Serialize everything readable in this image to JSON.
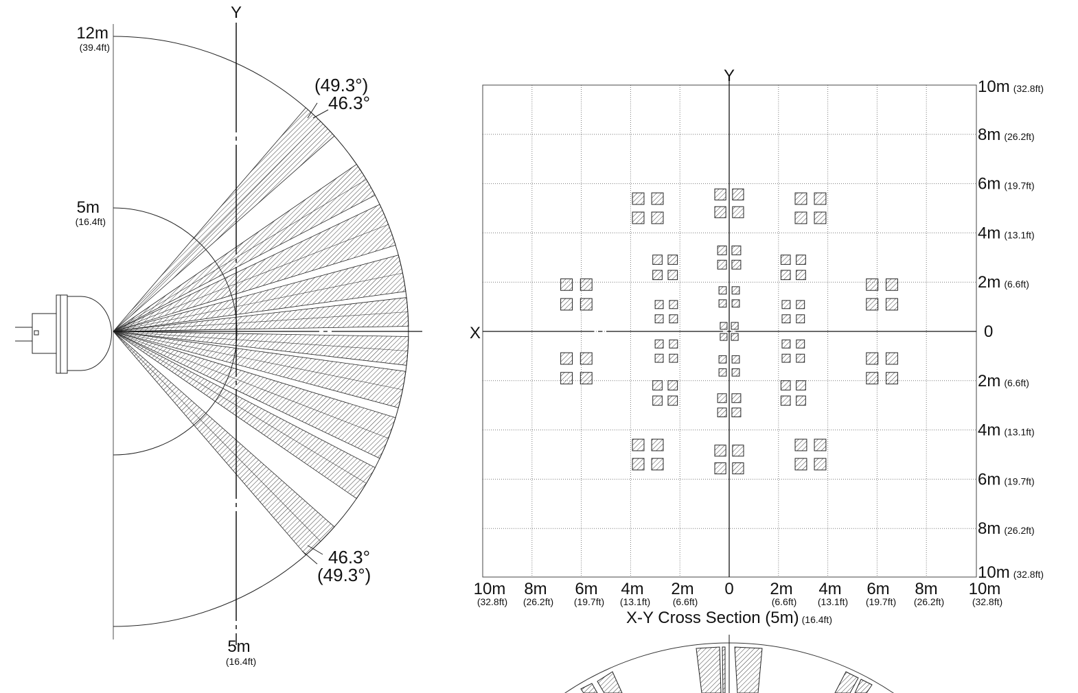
{
  "side_view": {
    "axis_label": "Y",
    "range_far": {
      "label": "12m",
      "sub": "(39.4ft)",
      "meters": 12
    },
    "range_near": {
      "label": "5m",
      "sub": "(16.4ft)",
      "meters": 5
    },
    "top_angle_outer": "(49.3°)",
    "top_angle_inner": "46.3°",
    "bottom_angle_inner": "46.3°",
    "bottom_angle_outer": "(49.3°)",
    "bottom_label": "5m",
    "bottom_sub": "(16.4ft)",
    "beam_wedges_deg": [
      [
        41.5,
        49.3
      ],
      [
        27.5,
        34.5
      ],
      [
        17,
        25.5
      ],
      [
        7.8,
        15
      ],
      [
        1,
        6.6
      ],
      [
        -6.6,
        -1
      ],
      [
        -15,
        -7.8
      ],
      [
        -25.5,
        -17
      ],
      [
        -34.5,
        -27.5
      ],
      [
        -49.3,
        -41.5
      ]
    ]
  },
  "cross_section": {
    "y_axis_label": "Y",
    "x_axis_label": "X",
    "title": "X-Y Cross Section (5m)",
    "title_sub": "(16.4ft)",
    "right_labels": [
      {
        "m": "10m",
        "ft": "(32.8ft)"
      },
      {
        "m": "8m",
        "ft": "(26.2ft)"
      },
      {
        "m": "6m",
        "ft": "(19.7ft)"
      },
      {
        "m": "4m",
        "ft": "(13.1ft)"
      },
      {
        "m": "2m",
        "ft": "(6.6ft)"
      },
      {
        "m": "0",
        "ft": ""
      },
      {
        "m": "2m",
        "ft": "(6.6ft)"
      },
      {
        "m": "4m",
        "ft": "(13.1ft)"
      },
      {
        "m": "6m",
        "ft": "(19.7ft)"
      },
      {
        "m": "8m",
        "ft": "(26.2ft)"
      },
      {
        "m": "10m",
        "ft": "(32.8ft)"
      }
    ],
    "bottom_labels": [
      {
        "m": "10m",
        "ft": "(32.8ft)"
      },
      {
        "m": "8m",
        "ft": "(26.2ft)"
      },
      {
        "m": "6m",
        "ft": "(19.7ft)"
      },
      {
        "m": "4m",
        "ft": "(13.1ft)"
      },
      {
        "m": "2m",
        "ft": "(6.6ft)"
      },
      {
        "m": "0",
        "ft": ""
      },
      {
        "m": "2m",
        "ft": "(6.6ft)"
      },
      {
        "m": "4m",
        "ft": "(13.1ft)"
      },
      {
        "m": "6m",
        "ft": "(19.7ft)"
      },
      {
        "m": "8m",
        "ft": "(26.2ft)"
      },
      {
        "m": "10m",
        "ft": "(32.8ft)"
      }
    ],
    "zone_clusters_m": [
      {
        "x": -3.3,
        "y": 5.0,
        "size": 0.47,
        "pitch": 0.78
      },
      {
        "x": 0,
        "y": 5.2,
        "size": 0.45,
        "pitch": 0.72
      },
      {
        "x": 3.3,
        "y": 5.0,
        "size": 0.47,
        "pitch": 0.78
      },
      {
        "x": -6.2,
        "y": 1.5,
        "size": 0.47,
        "pitch": 0.8
      },
      {
        "x": 6.2,
        "y": 1.5,
        "size": 0.47,
        "pitch": 0.8
      },
      {
        "x": -6.2,
        "y": -1.5,
        "size": 0.47,
        "pitch": 0.8
      },
      {
        "x": 6.2,
        "y": -1.5,
        "size": 0.47,
        "pitch": 0.8
      },
      {
        "x": -3.3,
        "y": -5.0,
        "size": 0.47,
        "pitch": 0.78
      },
      {
        "x": 0,
        "y": -5.2,
        "size": 0.45,
        "pitch": 0.72
      },
      {
        "x": 3.3,
        "y": -5.0,
        "size": 0.47,
        "pitch": 0.78
      },
      {
        "x": -2.6,
        "y": 2.6,
        "size": 0.38,
        "pitch": 0.62
      },
      {
        "x": 0,
        "y": 3.0,
        "size": 0.36,
        "pitch": 0.58
      },
      {
        "x": 2.6,
        "y": 2.6,
        "size": 0.38,
        "pitch": 0.62
      },
      {
        "x": -2.55,
        "y": 0.8,
        "size": 0.33,
        "pitch": 0.58
      },
      {
        "x": 2.6,
        "y": 0.8,
        "size": 0.33,
        "pitch": 0.58
      },
      {
        "x": 0,
        "y": 1.4,
        "size": 0.3,
        "pitch": 0.53
      },
      {
        "x": 0,
        "y": 0,
        "size": 0.28,
        "pitch": 0.45
      },
      {
        "x": 0,
        "y": -1.4,
        "size": 0.3,
        "pitch": 0.53
      },
      {
        "x": -2.55,
        "y": -0.8,
        "size": 0.33,
        "pitch": 0.58
      },
      {
        "x": 2.6,
        "y": -0.8,
        "size": 0.33,
        "pitch": 0.58
      },
      {
        "x": -2.6,
        "y": -2.5,
        "size": 0.38,
        "pitch": 0.62
      },
      {
        "x": 0,
        "y": -3.0,
        "size": 0.36,
        "pitch": 0.58
      },
      {
        "x": 2.6,
        "y": -2.5,
        "size": 0.38,
        "pitch": 0.62
      }
    ]
  },
  "colors": {
    "line": "#111111",
    "grid": "#666666"
  }
}
